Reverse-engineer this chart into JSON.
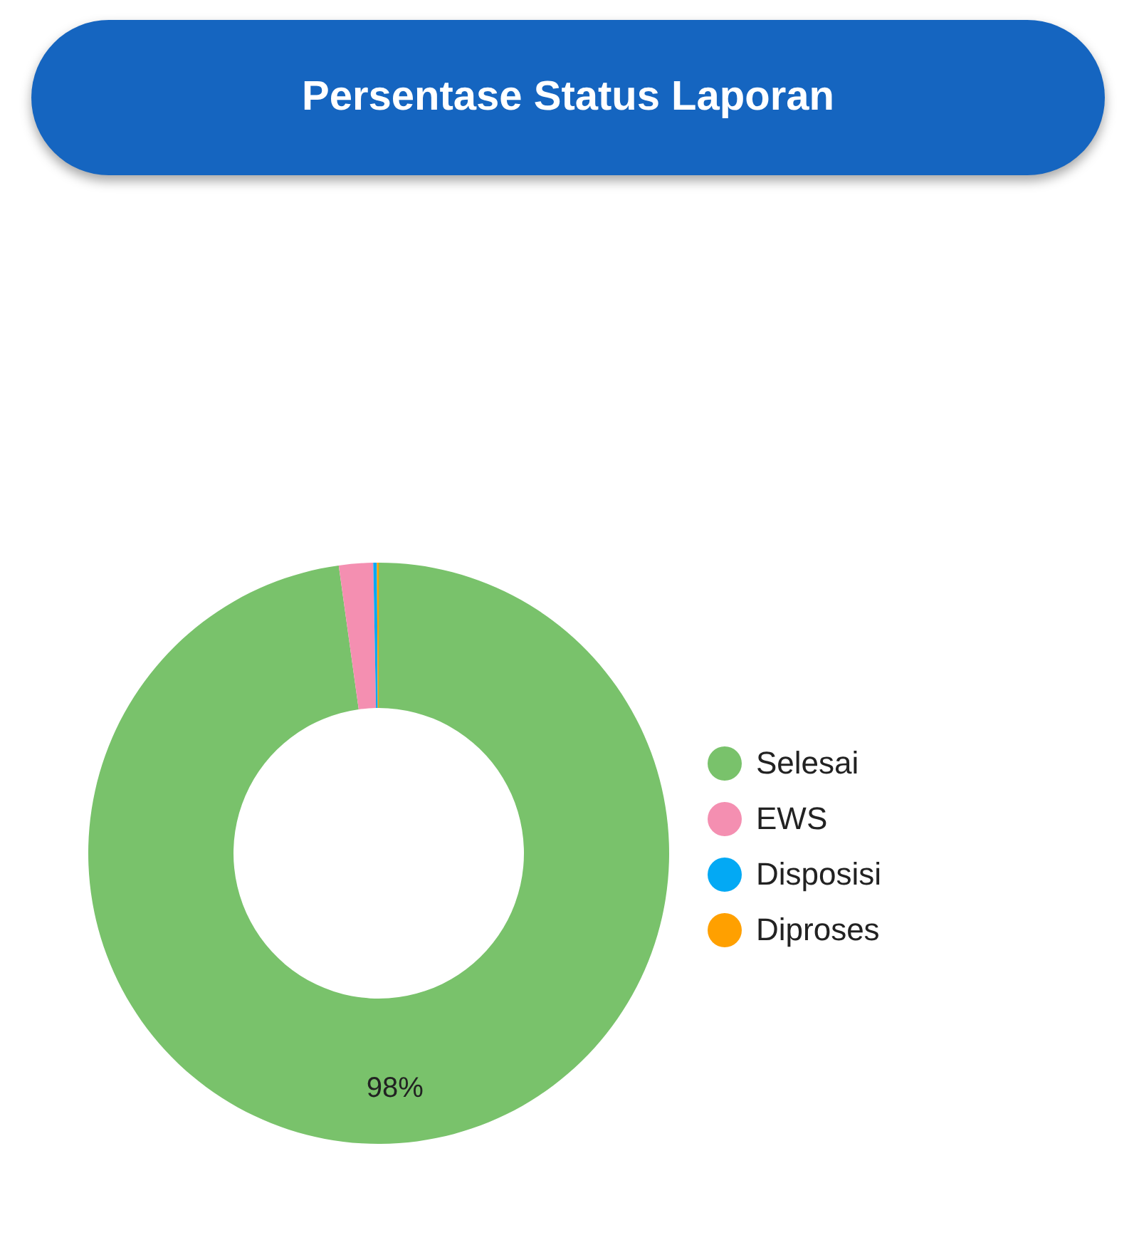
{
  "chart_data": {
    "type": "donut",
    "title": "Persentase Status Laporan",
    "categories": [
      "Selesai",
      "EWS",
      "Disposisi",
      "Diproses"
    ],
    "values": [
      97.8,
      1.9,
      0.2,
      0.1
    ],
    "colors": [
      "#79c26b",
      "#f48fb1",
      "#03a9f4",
      "#ffa000"
    ],
    "value_labels": [
      "98%",
      null,
      null,
      null
    ],
    "legend": "right"
  }
}
